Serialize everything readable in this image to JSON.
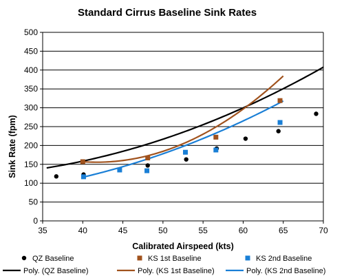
{
  "chart_data": {
    "type": "scatter",
    "title": "Standard Cirrus Baseline Sink Rates",
    "xlabel": "Calibrated Airspeed (kts)",
    "ylabel": "Sink Rate (fpm)",
    "xlim": [
      35,
      70
    ],
    "ylim": [
      0,
      500
    ],
    "xticks": [
      "35",
      "40",
      "45",
      "50",
      "55",
      "60",
      "65",
      "70"
    ],
    "yticks": [
      "0",
      "50",
      "100",
      "150",
      "200",
      "250",
      "300",
      "350",
      "400",
      "450",
      "500"
    ],
    "grid": "horizontal",
    "legend_position": "bottom",
    "series": [
      {
        "name": "QZ Baseline",
        "marker": "circle",
        "color": "#000000",
        "points": [
          [
            36.7,
            118
          ],
          [
            40.1,
            123
          ],
          [
            48.1,
            147
          ],
          [
            52.9,
            163
          ],
          [
            56.7,
            192
          ],
          [
            60.3,
            218
          ],
          [
            64.4,
            238
          ],
          [
            69.1,
            284
          ]
        ]
      },
      {
        "name": "KS 1st Baseline",
        "marker": "square",
        "color": "#a0521d",
        "points": [
          [
            40.0,
            157
          ],
          [
            48.1,
            167
          ],
          [
            56.6,
            222
          ],
          [
            64.6,
            319
          ]
        ]
      },
      {
        "name": "KS 2nd Baseline",
        "marker": "square",
        "color": "#1a7fd6",
        "points": [
          [
            40.1,
            117
          ],
          [
            44.6,
            135
          ],
          [
            48.0,
            133
          ],
          [
            52.8,
            182
          ],
          [
            56.6,
            188
          ],
          [
            64.6,
            261
          ]
        ]
      }
    ],
    "trendlines": [
      {
        "name": "Poly. (QZ Baseline)",
        "color": "#000000",
        "x_range": [
          35.5,
          70
        ],
        "coefficients": [
          0.1245,
          -5.39,
          174.9
        ]
      },
      {
        "name": "Poly. (KS 1st Baseline)",
        "color": "#a0521d",
        "x_range": [
          40,
          65
        ],
        "coefficients": [
          0.4227,
          -35.29,
          892.2
        ]
      },
      {
        "name": "Poly. (KS 2nd Baseline)",
        "color": "#1a7fd6",
        "x_range": [
          40,
          65
        ],
        "coefficients": [
          0.1246,
          -5.0,
          116.5
        ]
      }
    ]
  }
}
